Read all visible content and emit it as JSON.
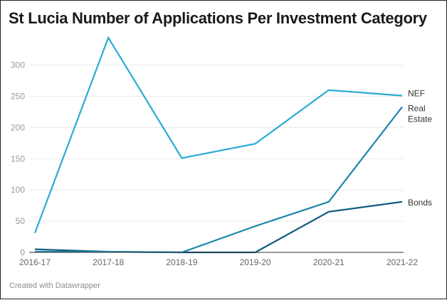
{
  "title": "St Lucia Number of Applications Per Investment Category",
  "credit": "Created with Datawrapper",
  "colors": {
    "nef": "#2aabd6",
    "real_estate": "#1a85ac",
    "bonds": "#0f5a80",
    "grid": "#eaeaea",
    "axis": "#333333"
  },
  "chart_data": {
    "type": "line",
    "title": "St Lucia Number of Applications Per Investment Category",
    "xlabel": "",
    "ylabel": "",
    "categories": [
      "2016-17",
      "2017-18",
      "2018-19",
      "2019-20",
      "2020-21",
      "2021-22"
    ],
    "series": [
      {
        "name": "NEF",
        "values": [
          31,
          344,
          151,
          174,
          260,
          251
        ]
      },
      {
        "name": "Real Estate",
        "values": [
          1,
          1,
          0,
          42,
          81,
          233
        ]
      },
      {
        "name": "Bonds",
        "values": [
          5,
          1,
          0,
          0,
          65,
          81
        ]
      }
    ],
    "yticks": [
      0,
      50,
      100,
      150,
      200,
      250,
      300
    ],
    "ylim": [
      0,
      350
    ],
    "grid": true,
    "legend_position": "direct-labels-right"
  }
}
